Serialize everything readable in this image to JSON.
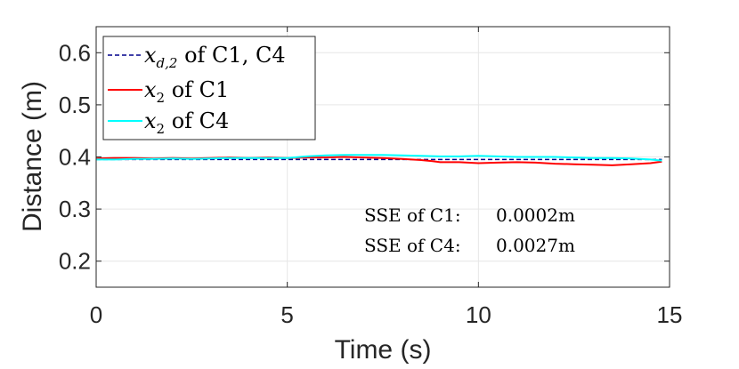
{
  "chart_data": {
    "type": "line",
    "title": "",
    "xlabel": "Time (s)",
    "ylabel": "Distance (m)",
    "xlim": [
      0,
      15
    ],
    "ylim": [
      0.15,
      0.65
    ],
    "xticks": [
      0,
      5,
      10,
      15
    ],
    "yticks": [
      0.2,
      0.3,
      0.4,
      0.5,
      0.6
    ],
    "xtick_labels": [
      "0",
      "5",
      "10",
      "15"
    ],
    "ytick_labels": [
      "0.2",
      "0.3",
      "0.4",
      "0.5",
      "0.6"
    ],
    "grid": true,
    "legend_position": "top-left",
    "series": [
      {
        "name": "x_{d,2} of C1, C4",
        "legend_label": {
          "symbol": "x",
          "subscript": "d,2",
          "text": " of C1, C4"
        },
        "color": "#00008b",
        "style": "dashed",
        "x": [
          0,
          14.8
        ],
        "y": [
          0.395,
          0.395
        ]
      },
      {
        "name": "x_2 of C1",
        "legend_label": {
          "symbol": "x",
          "subscript": "2",
          "text": " of C1"
        },
        "color": "#ff0000",
        "style": "solid",
        "x": [
          0,
          0.5,
          1,
          1.5,
          2,
          2.5,
          3,
          3.5,
          4,
          4.5,
          5,
          5.5,
          6,
          6.5,
          7,
          7.5,
          8,
          8.5,
          8.8,
          9,
          9.5,
          10,
          10.5,
          11,
          11.5,
          12,
          12.5,
          13,
          13.5,
          14,
          14.5,
          14.8
        ],
        "y": [
          0.397,
          0.398,
          0.398,
          0.397,
          0.398,
          0.397,
          0.398,
          0.399,
          0.398,
          0.399,
          0.398,
          0.399,
          0.399,
          0.4,
          0.399,
          0.398,
          0.396,
          0.394,
          0.392,
          0.39,
          0.39,
          0.388,
          0.389,
          0.39,
          0.389,
          0.387,
          0.386,
          0.385,
          0.384,
          0.386,
          0.388,
          0.391
        ]
      },
      {
        "name": "x_2 of C4",
        "legend_label": {
          "symbol": "x",
          "subscript": "2",
          "text": " of C4"
        },
        "color": "#00ffff",
        "style": "solid",
        "x": [
          0,
          0.5,
          1,
          1.5,
          2,
          2.5,
          3,
          3.5,
          4,
          4.5,
          5,
          5.5,
          6,
          6.5,
          7,
          7.5,
          8,
          8.5,
          9,
          9.5,
          10,
          10.5,
          11,
          11.5,
          12,
          12.5,
          13,
          13.5,
          14,
          14.5,
          14.8
        ],
        "y": [
          0.395,
          0.395,
          0.396,
          0.396,
          0.397,
          0.396,
          0.397,
          0.398,
          0.398,
          0.398,
          0.398,
          0.401,
          0.403,
          0.404,
          0.404,
          0.404,
          0.403,
          0.402,
          0.401,
          0.401,
          0.402,
          0.401,
          0.4,
          0.4,
          0.4,
          0.399,
          0.398,
          0.398,
          0.397,
          0.395,
          0.393
        ]
      }
    ],
    "annotations": [
      {
        "label": "SSE of C1:",
        "value": "0.0002m"
      },
      {
        "label": "SSE of C4:",
        "value": "0.0027m"
      }
    ]
  }
}
